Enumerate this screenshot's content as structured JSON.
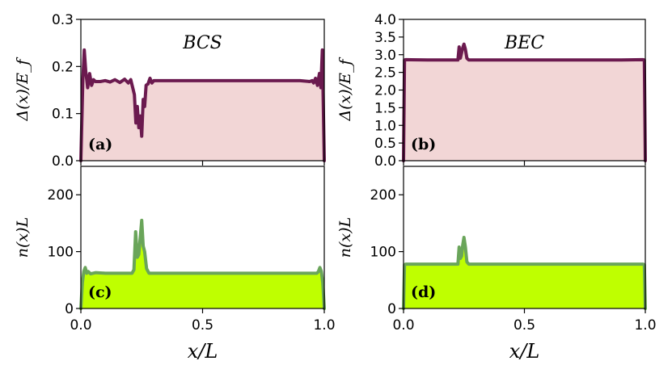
{
  "figure": {
    "x_label": "x/L",
    "colors": {
      "gap_line": "#6b1a4f",
      "gap_fill": "#f2d6d6",
      "density_line": "#6aa55a",
      "density_fill": "#bfff00"
    }
  },
  "chart_data": [
    {
      "id": "a",
      "type": "area",
      "panel_label": "(a)",
      "title": "BCS",
      "ylabel": "Δ(x)/E_f",
      "xlim": [
        0.0,
        1.0
      ],
      "ylim": [
        0.0,
        0.3
      ],
      "yticks": [
        0.0,
        0.1,
        0.2,
        0.3
      ],
      "ytick_labels": [
        "0.0",
        "0.1",
        "0.2",
        "0.3"
      ],
      "xticks": [
        0.0,
        0.5,
        1.0
      ],
      "xtick_labels": [
        "",
        "",
        ""
      ],
      "x": [
        0.0,
        0.008,
        0.014,
        0.02,
        0.028,
        0.036,
        0.044,
        0.052,
        0.06,
        0.08,
        0.1,
        0.12,
        0.14,
        0.16,
        0.18,
        0.195,
        0.205,
        0.213,
        0.22,
        0.226,
        0.232,
        0.238,
        0.244,
        0.25,
        0.256,
        0.262,
        0.268,
        0.276,
        0.284,
        0.292,
        0.3,
        0.32,
        0.4,
        0.5,
        0.6,
        0.7,
        0.8,
        0.9,
        0.94,
        0.95,
        0.956,
        0.964,
        0.972,
        0.98,
        0.986,
        0.992,
        1.0
      ],
      "y": [
        0.0,
        0.17,
        0.235,
        0.19,
        0.155,
        0.185,
        0.16,
        0.172,
        0.168,
        0.168,
        0.17,
        0.167,
        0.172,
        0.166,
        0.173,
        0.165,
        0.172,
        0.155,
        0.14,
        0.08,
        0.115,
        0.07,
        0.095,
        0.052,
        0.13,
        0.115,
        0.16,
        0.163,
        0.175,
        0.165,
        0.17,
        0.17,
        0.17,
        0.17,
        0.17,
        0.17,
        0.17,
        0.17,
        0.168,
        0.17,
        0.165,
        0.175,
        0.16,
        0.185,
        0.155,
        0.235,
        0.0
      ],
      "series": [
        {
          "name": "Δ(x)/E_f",
          "color": "#6b1a4f",
          "fill": "#f2d6d6"
        }
      ]
    },
    {
      "id": "b",
      "type": "area",
      "panel_label": "(b)",
      "title": "BEC",
      "ylabel": "Δ(x)/E_f",
      "xlim": [
        0.0,
        1.0
      ],
      "ylim": [
        0.0,
        4.0
      ],
      "yticks": [
        0.0,
        0.5,
        1.0,
        1.5,
        2.0,
        2.5,
        3.0,
        3.5,
        4.0
      ],
      "ytick_labels": [
        "0.0",
        "0.5",
        "1.0",
        "1.5",
        "2.0",
        "2.5",
        "3.0",
        "3.5",
        "4.0"
      ],
      "xticks": [
        0.0,
        0.5,
        1.0
      ],
      "xtick_labels": [
        "",
        "",
        ""
      ],
      "x": [
        0.0,
        0.004,
        0.01,
        0.1,
        0.2,
        0.225,
        0.23,
        0.235,
        0.24,
        0.245,
        0.25,
        0.256,
        0.262,
        0.27,
        0.3,
        0.5,
        0.7,
        0.9,
        0.99,
        0.996,
        1.0
      ],
      "y": [
        0.0,
        2.85,
        2.86,
        2.85,
        2.85,
        2.85,
        3.22,
        2.9,
        3.05,
        3.2,
        3.3,
        3.15,
        2.9,
        2.85,
        2.85,
        2.85,
        2.85,
        2.85,
        2.86,
        2.85,
        0.0
      ],
      "series": [
        {
          "name": "Δ(x)/E_f",
          "color": "#6b1a4f",
          "fill": "#f2d6d6"
        }
      ]
    },
    {
      "id": "c",
      "type": "area",
      "panel_label": "(c)",
      "title": "",
      "ylabel": "n(x)L",
      "xlim": [
        0.0,
        1.0
      ],
      "ylim": [
        0,
        250
      ],
      "yticks": [
        0,
        100,
        200
      ],
      "ytick_labels": [
        "0",
        "100",
        "200"
      ],
      "xticks": [
        0.0,
        0.5,
        1.0
      ],
      "xtick_labels": [
        "0.0",
        "0.5",
        "1.0"
      ],
      "x": [
        0.0,
        0.006,
        0.012,
        0.018,
        0.024,
        0.03,
        0.04,
        0.06,
        0.1,
        0.15,
        0.2,
        0.21,
        0.218,
        0.225,
        0.232,
        0.238,
        0.245,
        0.25,
        0.256,
        0.262,
        0.27,
        0.28,
        0.3,
        0.5,
        0.7,
        0.9,
        0.97,
        0.976,
        0.982,
        0.988,
        0.994,
        1.0
      ],
      "y": [
        0,
        45,
        65,
        72,
        62,
        65,
        61,
        63,
        62,
        62,
        62,
        62,
        68,
        135,
        90,
        95,
        130,
        155,
        110,
        100,
        70,
        62,
        62,
        62,
        62,
        62,
        62,
        65,
        72,
        65,
        45,
        0
      ],
      "series": [
        {
          "name": "n(x)L",
          "color": "#6aa55a",
          "fill": "#bfff00"
        }
      ]
    },
    {
      "id": "d",
      "type": "area",
      "panel_label": "(d)",
      "title": "",
      "ylabel": "n(x)L",
      "xlim": [
        0.0,
        1.0
      ],
      "ylim": [
        0,
        250
      ],
      "yticks": [
        0,
        100,
        200
      ],
      "ytick_labels": [
        "0",
        "100",
        "200"
      ],
      "xticks": [
        0.0,
        0.5,
        1.0
      ],
      "xtick_labels": [
        "0.0",
        "0.5",
        "1.0"
      ],
      "x": [
        0.0,
        0.004,
        0.01,
        0.1,
        0.2,
        0.225,
        0.23,
        0.235,
        0.24,
        0.245,
        0.25,
        0.256,
        0.262,
        0.27,
        0.3,
        0.5,
        0.7,
        0.9,
        0.99,
        0.996,
        1.0
      ],
      "y": [
        0,
        77,
        78,
        78,
        78,
        78,
        108,
        88,
        92,
        112,
        125,
        108,
        82,
        78,
        78,
        78,
        78,
        78,
        78,
        77,
        0
      ],
      "series": [
        {
          "name": "n(x)L",
          "color": "#6aa55a",
          "fill": "#bfff00"
        }
      ]
    }
  ]
}
